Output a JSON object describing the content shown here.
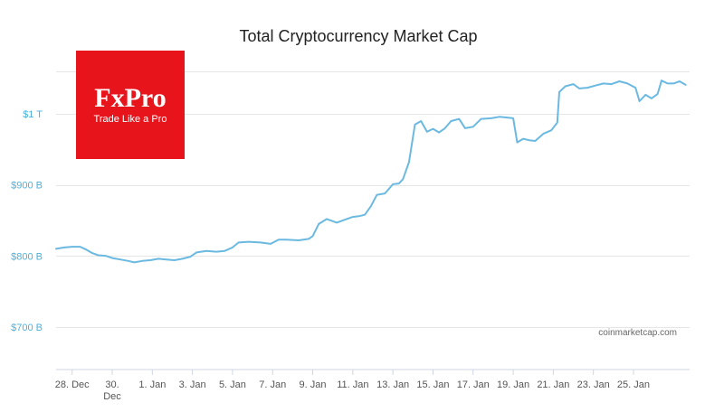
{
  "chart_data": {
    "type": "line",
    "title": "Total Cryptocurrency Market Cap",
    "xlabel": "",
    "ylabel": "",
    "y_unit": "USD",
    "ylim": [
      640,
      1060
    ],
    "y_ticks": [
      {
        "value": 700,
        "label": "$700 B"
      },
      {
        "value": 800,
        "label": "$800 B"
      },
      {
        "value": 900,
        "label": "$900 B"
      },
      {
        "value": 1000,
        "label": "$1 T"
      }
    ],
    "x_ticks": [
      {
        "day": 1,
        "label": "28. Dec"
      },
      {
        "day": 3,
        "label": "30. Dec"
      },
      {
        "day": 5,
        "label": "1. Jan"
      },
      {
        "day": 7,
        "label": "3. Jan"
      },
      {
        "day": 9,
        "label": "5. Jan"
      },
      {
        "day": 11,
        "label": "7. Jan"
      },
      {
        "day": 13,
        "label": "9. Jan"
      },
      {
        "day": 15,
        "label": "11. Jan"
      },
      {
        "day": 17,
        "label": "13. Jan"
      },
      {
        "day": 19,
        "label": "15. Jan"
      },
      {
        "day": 21,
        "label": "17. Jan"
      },
      {
        "day": 23,
        "label": "19. Jan"
      },
      {
        "day": 25,
        "label": "21. Jan"
      },
      {
        "day": 27,
        "label": "23. Jan"
      },
      {
        "day": 29,
        "label": "25. Jan"
      }
    ],
    "xlim": [
      0.2,
      31.8
    ],
    "grid": true,
    "legend": "none",
    "color": "#6bb9e0",
    "series": [
      {
        "points": [
          [
            0.2,
            810
          ],
          [
            0.6,
            812
          ],
          [
            1.0,
            813
          ],
          [
            1.4,
            813
          ],
          [
            1.7,
            809
          ],
          [
            2.0,
            804
          ],
          [
            2.3,
            801
          ],
          [
            2.7,
            800
          ],
          [
            3.0,
            797
          ],
          [
            3.4,
            795
          ],
          [
            3.8,
            793
          ],
          [
            4.1,
            791
          ],
          [
            4.5,
            793
          ],
          [
            4.9,
            794
          ],
          [
            5.3,
            796
          ],
          [
            5.7,
            795
          ],
          [
            6.1,
            794
          ],
          [
            6.5,
            796
          ],
          [
            6.9,
            799
          ],
          [
            7.2,
            805
          ],
          [
            7.7,
            807
          ],
          [
            8.2,
            806
          ],
          [
            8.6,
            807
          ],
          [
            9.0,
            812
          ],
          [
            9.3,
            819
          ],
          [
            9.8,
            820
          ],
          [
            10.4,
            819
          ],
          [
            10.9,
            817
          ],
          [
            11.3,
            823
          ],
          [
            11.7,
            823
          ],
          [
            12.3,
            822
          ],
          [
            12.8,
            824
          ],
          [
            13.0,
            828
          ],
          [
            13.3,
            845
          ],
          [
            13.7,
            852
          ],
          [
            14.2,
            847
          ],
          [
            14.6,
            851
          ],
          [
            15.0,
            855
          ],
          [
            15.3,
            856
          ],
          [
            15.6,
            858
          ],
          [
            15.9,
            870
          ],
          [
            16.2,
            886
          ],
          [
            16.6,
            888
          ],
          [
            17.0,
            901
          ],
          [
            17.3,
            902
          ],
          [
            17.5,
            908
          ],
          [
            17.8,
            932
          ],
          [
            18.1,
            985
          ],
          [
            18.4,
            990
          ],
          [
            18.7,
            975
          ],
          [
            19.0,
            979
          ],
          [
            19.3,
            974
          ],
          [
            19.6,
            980
          ],
          [
            19.9,
            990
          ],
          [
            20.3,
            993
          ],
          [
            20.6,
            980
          ],
          [
            21.0,
            982
          ],
          [
            21.4,
            993
          ],
          [
            21.9,
            994
          ],
          [
            22.3,
            996
          ],
          [
            22.7,
            995
          ],
          [
            23.0,
            994
          ],
          [
            23.2,
            960
          ],
          [
            23.5,
            965
          ],
          [
            23.8,
            963
          ],
          [
            24.1,
            962
          ],
          [
            24.5,
            972
          ],
          [
            24.9,
            977
          ],
          [
            25.2,
            988
          ],
          [
            25.3,
            1031
          ],
          [
            25.6,
            1039
          ],
          [
            26.0,
            1042
          ],
          [
            26.3,
            1036
          ],
          [
            26.7,
            1037
          ],
          [
            27.1,
            1040
          ],
          [
            27.5,
            1043
          ],
          [
            27.9,
            1042
          ],
          [
            28.3,
            1046
          ],
          [
            28.7,
            1043
          ],
          [
            29.1,
            1037
          ],
          [
            29.3,
            1018
          ],
          [
            29.6,
            1027
          ],
          [
            29.9,
            1022
          ],
          [
            30.2,
            1028
          ],
          [
            30.4,
            1047
          ],
          [
            30.7,
            1043
          ],
          [
            31.0,
            1043
          ],
          [
            31.3,
            1046
          ],
          [
            31.6,
            1041
          ]
        ]
      }
    ]
  },
  "logo": {
    "brand": "FxPro",
    "tagline": "Trade Like a Pro",
    "color": "#e8141b"
  },
  "credit": "coinmarketcap.com"
}
